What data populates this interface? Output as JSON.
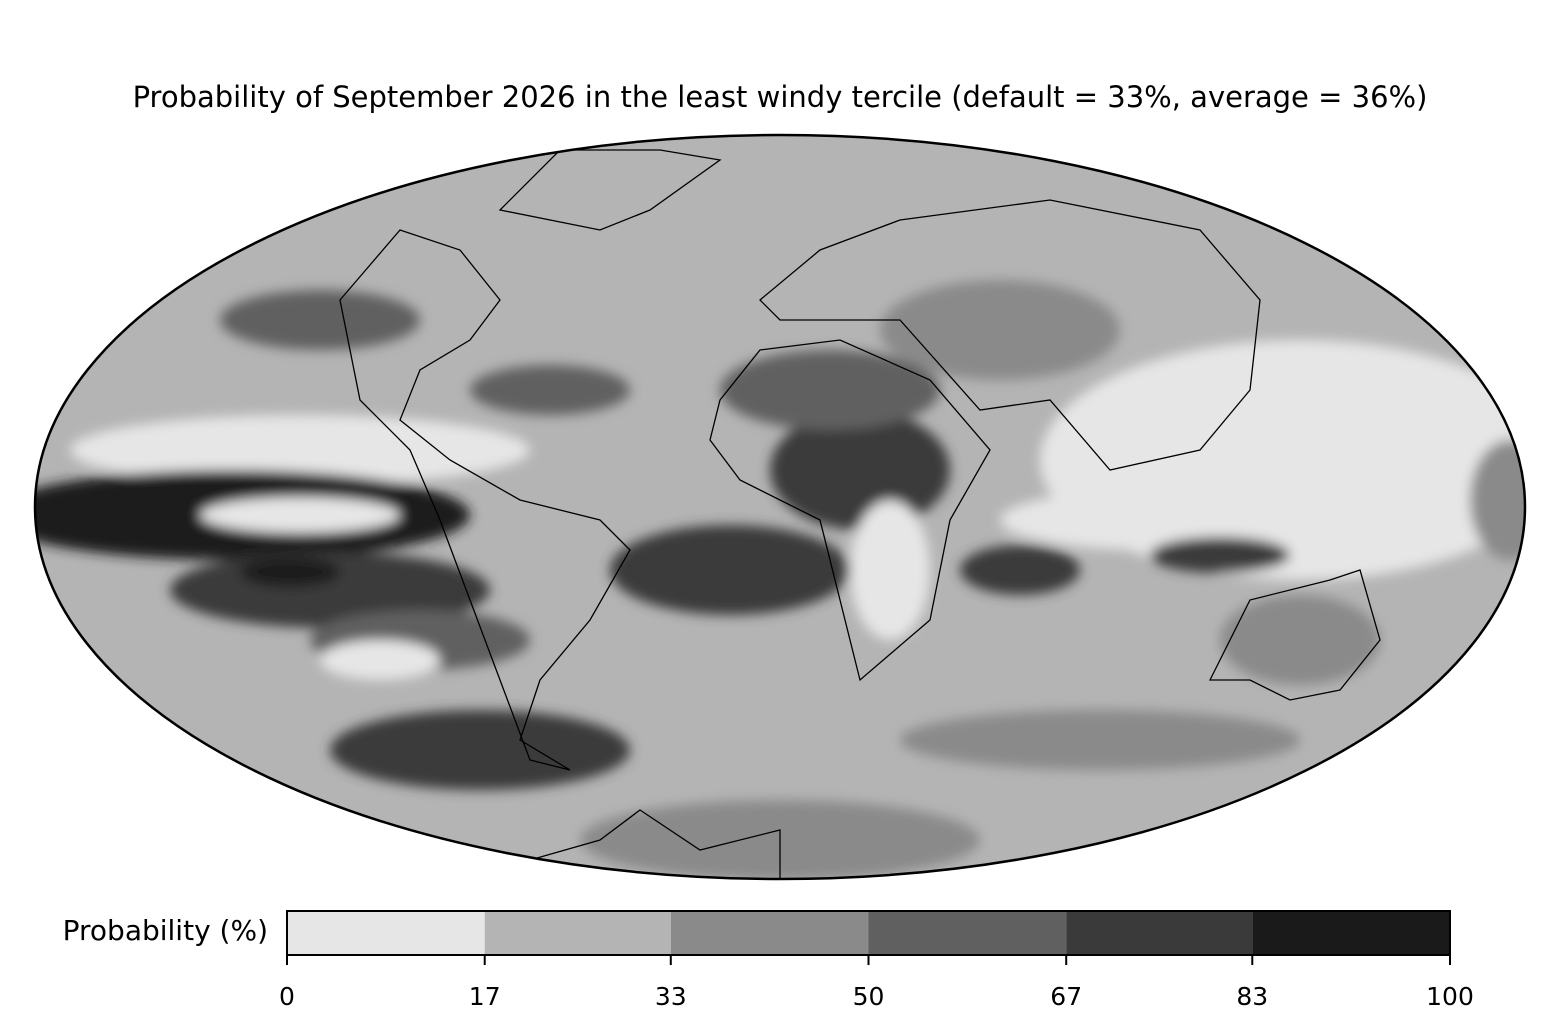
{
  "title": "Probability of September 2026 in the least windy tercile (default = 33%, average = 36%)",
  "colorbar": {
    "label": "Probability (%)",
    "lim": [
      0,
      100
    ],
    "ticks": [
      0,
      17,
      33,
      50,
      67,
      83,
      100
    ],
    "colors": [
      "#e6e6e6",
      "#b4b4b4",
      "#8a8a8a",
      "#606060",
      "#3a3a3a",
      "#1a1a1a"
    ]
  }
}
